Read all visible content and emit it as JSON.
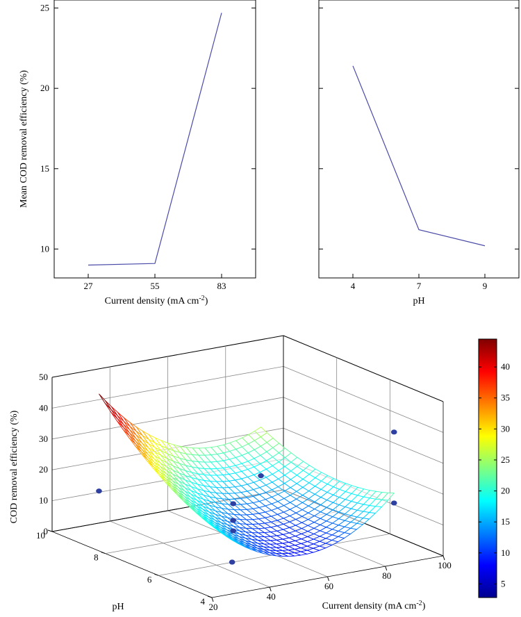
{
  "chart_data": [
    {
      "type": "line",
      "title": "",
      "xlabel": "Current density (mA cm-2)",
      "ylabel": "Mean COD removal efficiency (%)",
      "categories": [
        "27",
        "55",
        "83"
      ],
      "values": [
        9.0,
        9.1,
        24.7
      ],
      "ylim": [
        8.2,
        25.5
      ],
      "yticks": [
        10,
        15,
        20,
        25
      ],
      "color": "#4a4aa8"
    },
    {
      "type": "line",
      "title": "",
      "xlabel": "pH",
      "ylabel": "",
      "categories": [
        "4",
        "7",
        "9"
      ],
      "values": [
        21.4,
        11.2,
        10.2
      ],
      "ylim": [
        8.2,
        25.5
      ],
      "yticks": [
        10,
        15,
        20,
        25
      ],
      "color": "#4a4aa8"
    },
    {
      "type": "surface",
      "title": "",
      "xlabel": "Current density (mA cm-2)",
      "ylabel": "pH",
      "zlabel": "COD removal efficiency (%)",
      "xticks": [
        20,
        40,
        60,
        80,
        100
      ],
      "yticks": [
        4,
        6,
        8,
        10
      ],
      "zticks": [
        0,
        10,
        20,
        30,
        40,
        50
      ],
      "xlim": [
        20,
        100
      ],
      "ylim": [
        4,
        10
      ],
      "zlim": [
        0,
        50
      ],
      "surface_x_range": [
        27,
        83
      ],
      "surface_y_range": [
        4,
        9
      ],
      "model": "COD = 12 - 3.6*a + 8.3*b + 11.6*a^2 + 5.0*b^2 - 6.5*a*b (a = coded current density, b = coded pH)",
      "points": [
        {
          "x": 27,
          "y": 9,
          "z": 15.5
        },
        {
          "x": 27,
          "y": 4,
          "z": 10.3
        },
        {
          "x": 55,
          "y": 7,
          "z": 5.0
        },
        {
          "x": 55,
          "y": 7,
          "z": 8.4
        },
        {
          "x": 55,
          "y": 7,
          "z": 13.8
        },
        {
          "x": 83,
          "y": 4,
          "z": 43.0
        },
        {
          "x": 83,
          "y": 9,
          "z": 11.0
        },
        {
          "x": 83,
          "y": 4,
          "z": 20.0
        }
      ],
      "colorbar": {
        "ticks": [
          5,
          10,
          15,
          20,
          25,
          30,
          35,
          40
        ],
        "min": 2.8,
        "max": 44.5
      }
    }
  ]
}
